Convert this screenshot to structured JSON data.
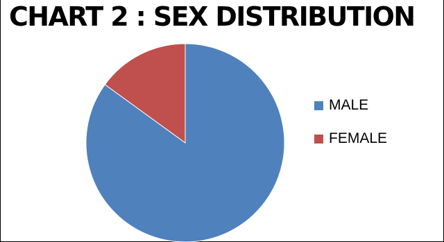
{
  "chart_data": {
    "type": "pie",
    "title": "CHART 2 : SEX DISTRIBUTION",
    "categories": [
      "MALE",
      "FEMALE"
    ],
    "values": [
      85,
      15
    ],
    "colors": [
      "#4f81bd",
      "#c0504d"
    ],
    "legend_position": "right"
  }
}
